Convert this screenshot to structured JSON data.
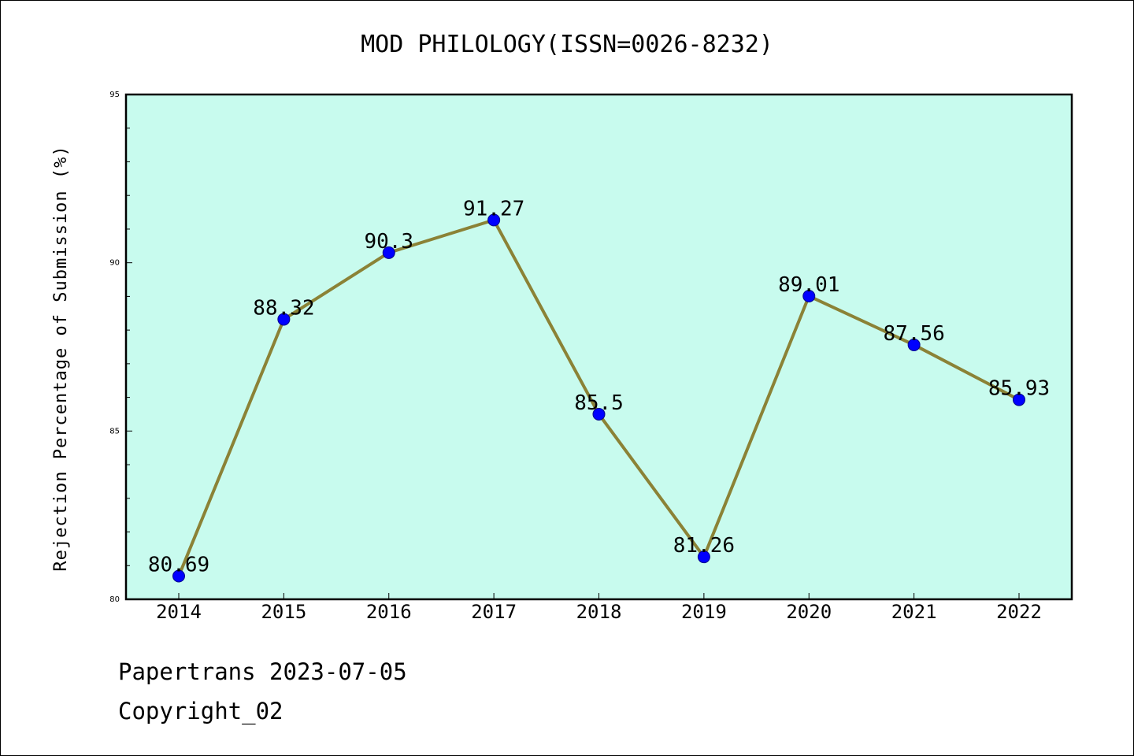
{
  "chart_data": {
    "type": "line",
    "title": "MOD PHILOLOGY(ISSN=0026-8232)",
    "xlabel": "",
    "ylabel": "Rejection Percentage of Submission (%)",
    "categories": [
      "2014",
      "2015",
      "2016",
      "2017",
      "2018",
      "2019",
      "2020",
      "2021",
      "2022"
    ],
    "values": [
      80.69,
      88.32,
      90.3,
      91.27,
      85.5,
      81.26,
      89.01,
      87.56,
      85.93
    ],
    "data_labels": [
      "80.69",
      "88.32",
      "90.3",
      "91.27",
      "85.5",
      "81.26",
      "89.01",
      "87.56",
      "85.93"
    ],
    "ylim": [
      80,
      95
    ],
    "yticks": [
      80,
      85,
      90,
      95
    ],
    "y_minor_step": 1,
    "grid": false,
    "legend": "none",
    "colors": {
      "plot_background": "#c8fbee",
      "line": "#8b8236",
      "marker": "#0000ff",
      "axes": "#000000"
    }
  },
  "footer": {
    "line1": "Papertrans 2023-07-05",
    "line2": "Copyright_02"
  }
}
